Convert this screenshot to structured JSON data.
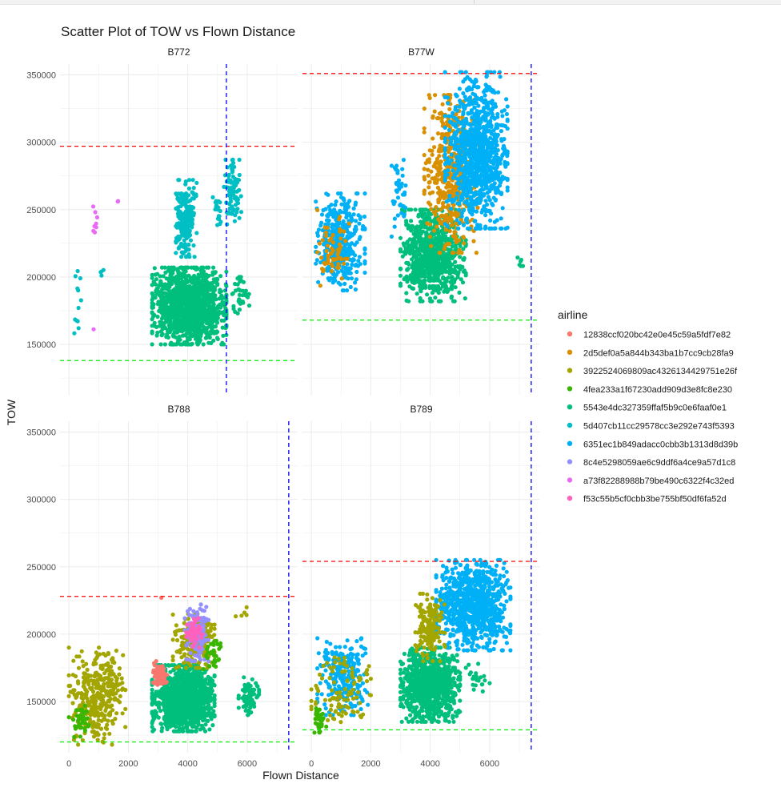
{
  "chart_data": {
    "type": "scatter",
    "title": "Scatter Plot of TOW vs Flown Distance",
    "xlabel": "Flown Distance",
    "ylabel": "TOW",
    "xlim": [
      -300,
      7700
    ],
    "ylim": [
      112000,
      358000
    ],
    "x_ticks": [
      0,
      2000,
      4000,
      6000
    ],
    "y_ticks": [
      150000,
      200000,
      250000,
      300000,
      350000
    ],
    "x_tick_labels": [
      "0",
      "2000",
      "4000",
      "6000"
    ],
    "y_tick_labels": [
      "150000",
      "200000",
      "250000",
      "300000",
      "350000"
    ],
    "grid": true,
    "legend": {
      "title": "airline",
      "position": "right",
      "entries": [
        {
          "label": "12838ccf020bc42e0e45c59a5fdf7e82",
          "color": "#F8766D"
        },
        {
          "label": "2d5def0a5a844b343ba1b7cc9cb28fa9",
          "color": "#D89000"
        },
        {
          "label": "3922524069809ac4326134429751e26f",
          "color": "#A3A500"
        },
        {
          "label": "4fea233a1f67230add909d3e8fc8e230",
          "color": "#39B600"
        },
        {
          "label": "5543e4dc327359ffaf5b9c0e6faaf0e1",
          "color": "#00BF7D"
        },
        {
          "label": "5d407cb11cc29578cc3e292e743f5393",
          "color": "#00BFC4"
        },
        {
          "label": "6351ec1b849adacc0cbb3b1313d8d39b",
          "color": "#00B0F6"
        },
        {
          "label": "8c4e5298059ae6c9ddf6a4ce9a57d1c8",
          "color": "#9590FF"
        },
        {
          "label": "a73f82288988b79be490c6322f4c32ed",
          "color": "#E76BF3"
        },
        {
          "label": "f53c55b5cf0cbb3be755bf50df6fa52d",
          "color": "#FF62BC"
        }
      ]
    },
    "panels": [
      {
        "name": "B772",
        "max_tow_line": 297000,
        "min_tow_line": 138000,
        "max_distance_line": 5300,
        "clusters": [
          {
            "series": 4,
            "x": [
              2800,
              5300
            ],
            "y": [
              150000,
              207000
            ],
            "n": 1400
          },
          {
            "series": 4,
            "x": [
              5500,
              6100
            ],
            "y": [
              173000,
              200000
            ],
            "n": 40
          },
          {
            "series": 5,
            "x": [
              3600,
              4300
            ],
            "y": [
              215000,
              272000
            ],
            "n": 220
          },
          {
            "series": 5,
            "x": [
              4800,
              5200
            ],
            "y": [
              238000,
              260000
            ],
            "n": 20
          },
          {
            "series": 5,
            "x": [
              5200,
              5800
            ],
            "y": [
              235000,
              287000
            ],
            "n": 90
          },
          {
            "series": 5,
            "x": [
              150,
              450
            ],
            "y": [
              152000,
              210000
            ],
            "n": 12
          },
          {
            "series": 5,
            "x": [
              1000,
              1250
            ],
            "y": [
              198000,
              208000
            ],
            "n": 4
          },
          {
            "series": 8,
            "x": [
              750,
              950
            ],
            "y": [
              229000,
              257000
            ],
            "n": 8
          },
          {
            "series": 8,
            "x": [
              1600,
              1700
            ],
            "y": [
              255000,
              257000
            ],
            "n": 2
          },
          {
            "series": 8,
            "x": [
              800,
              900
            ],
            "y": [
              160000,
              162000
            ],
            "n": 1
          }
        ]
      },
      {
        "name": "B77W",
        "max_tow_line": 351000,
        "min_tow_line": 168000,
        "max_distance_line": 7400,
        "clusters": [
          {
            "series": 4,
            "x": [
              3000,
              5200
            ],
            "y": [
              182000,
              250000
            ],
            "n": 800
          },
          {
            "series": 4,
            "x": [
              6900,
              7200
            ],
            "y": [
              206000,
              218000
            ],
            "n": 6
          },
          {
            "series": 1,
            "x": [
              3800,
              5600
            ],
            "y": [
              218000,
              335000
            ],
            "n": 500
          },
          {
            "series": 6,
            "x": [
              4500,
              6600
            ],
            "y": [
              236000,
              352000
            ],
            "n": 1000
          },
          {
            "series": 6,
            "x": [
              150,
              1800
            ],
            "y": [
              190000,
              262000
            ],
            "n": 400
          },
          {
            "series": 6,
            "x": [
              2700,
              3200
            ],
            "y": [
              230000,
              300000
            ],
            "n": 40
          },
          {
            "series": 1,
            "x": [
              200,
              1300
            ],
            "y": [
              190000,
              250000
            ],
            "n": 60
          }
        ]
      },
      {
        "name": "B788",
        "max_tow_line": 228000,
        "min_tow_line": 120000,
        "max_distance_line": 7400,
        "clusters": [
          {
            "series": 4,
            "x": [
              2800,
              4900
            ],
            "y": [
              128000,
              177000
            ],
            "n": 1200
          },
          {
            "series": 4,
            "x": [
              5700,
              6400
            ],
            "y": [
              140000,
              168000
            ],
            "n": 80
          },
          {
            "series": 2,
            "x": [
              0,
              1900
            ],
            "y": [
              118000,
              190000
            ],
            "n": 350
          },
          {
            "series": 2,
            "x": [
              3500,
              4900
            ],
            "y": [
              175000,
              215000
            ],
            "n": 200
          },
          {
            "series": 2,
            "x": [
              5600,
              6200
            ],
            "y": [
              210000,
              220000
            ],
            "n": 5
          },
          {
            "series": 0,
            "x": [
              2800,
              3300
            ],
            "y": [
              160000,
              180000
            ],
            "n": 80
          },
          {
            "series": 0,
            "x": [
              3000,
              3200
            ],
            "y": [
              226000,
              228000
            ],
            "n": 1
          },
          {
            "series": 7,
            "x": [
              3900,
              4700
            ],
            "y": [
              180000,
              222000
            ],
            "n": 120
          },
          {
            "series": 9,
            "x": [
              3900,
              4500
            ],
            "y": [
              190000,
              212000
            ],
            "n": 60
          },
          {
            "series": 3,
            "x": [
              0,
              700
            ],
            "y": [
              122000,
              150000
            ],
            "n": 40
          },
          {
            "series": 3,
            "x": [
              4500,
              5200
            ],
            "y": [
              170000,
              198000
            ],
            "n": 30
          }
        ]
      },
      {
        "name": "B789",
        "max_tow_line": 254000,
        "min_tow_line": 129000,
        "max_distance_line": 7400,
        "clusters": [
          {
            "series": 4,
            "x": [
              3000,
              5000
            ],
            "y": [
              135000,
              190000
            ],
            "n": 900
          },
          {
            "series": 4,
            "x": [
              5200,
              6000
            ],
            "y": [
              155000,
              178000
            ],
            "n": 25
          },
          {
            "series": 6,
            "x": [
              4200,
              6700
            ],
            "y": [
              188000,
              255000
            ],
            "n": 900
          },
          {
            "series": 6,
            "x": [
              200,
              1900
            ],
            "y": [
              140000,
              197000
            ],
            "n": 250
          },
          {
            "series": 2,
            "x": [
              3500,
              4500
            ],
            "y": [
              180000,
              230000
            ],
            "n": 160
          },
          {
            "series": 2,
            "x": [
              0,
              2000
            ],
            "y": [
              127000,
              185000
            ],
            "n": 100
          },
          {
            "series": 3,
            "x": [
              0,
              500
            ],
            "y": [
              127000,
              145000
            ],
            "n": 40
          }
        ]
      }
    ]
  }
}
